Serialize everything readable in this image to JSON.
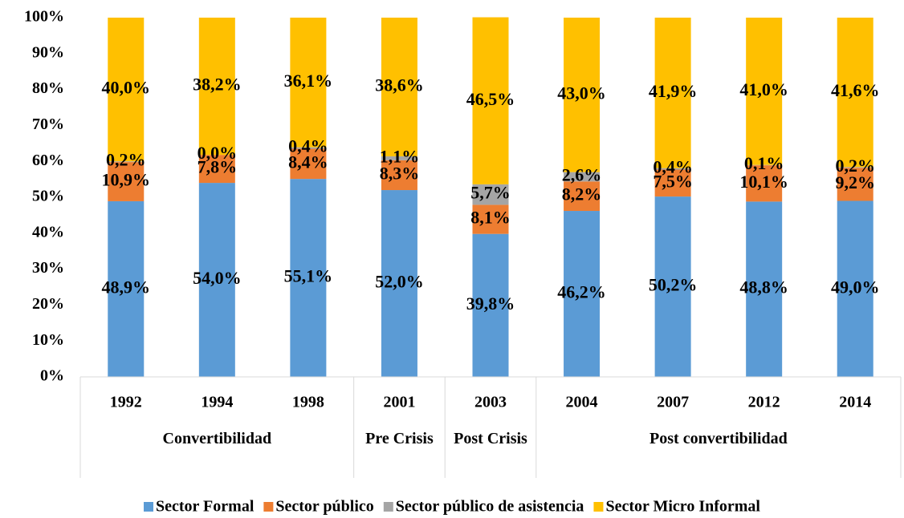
{
  "chart_data": {
    "type": "stacked_bar_100",
    "categories": [
      "1992",
      "1994",
      "1998",
      "2001",
      "2003",
      "2004",
      "2007",
      "2012",
      "2014"
    ],
    "category_groups": [
      "Convertibilidad",
      "Convertibilidad",
      "Convertibilidad",
      "Pre Crisis",
      "Post Crisis",
      "Post convertibilidad",
      "Post convertibilidad",
      "Post convertibilidad",
      "Post convertibilidad"
    ],
    "series": [
      {
        "name": "Sector Formal",
        "color": "#5b9bd5",
        "values": [
          48.9,
          54.0,
          55.1,
          52.0,
          39.8,
          46.2,
          50.2,
          48.8,
          49.0
        ],
        "value_labels": [
          "48,9%",
          "54,0%",
          "55,1%",
          "52,0%",
          "39,8%",
          "46,2%",
          "50,2%",
          "48,8%",
          "49,0%"
        ]
      },
      {
        "name": "Sector público",
        "color": "#ed7d31",
        "values": [
          10.9,
          7.8,
          8.4,
          8.3,
          8.1,
          8.2,
          7.5,
          10.1,
          9.2
        ],
        "value_labels": [
          "10,9%",
          "7,8%",
          "8,4%",
          "8,3%",
          "8,1%",
          "8,2%",
          "7,5%",
          "10,1%",
          "9,2%"
        ]
      },
      {
        "name": "Sector público de asistencia",
        "color": "#a5a5a5",
        "values": [
          0.2,
          0.0,
          0.4,
          1.1,
          5.7,
          2.6,
          0.4,
          0.1,
          0.2
        ],
        "value_labels": [
          "0,2%",
          "0,0%",
          "0,4%",
          "1,1%",
          "5,7%",
          "2,6%",
          "0,4%",
          "0,1%",
          "0,2%"
        ]
      },
      {
        "name": "Sector Micro Informal",
        "color": "#ffc000",
        "values": [
          40.0,
          38.2,
          36.1,
          38.6,
          46.5,
          43.0,
          41.9,
          41.0,
          41.6
        ],
        "value_labels": [
          "40,0%",
          "38,2%",
          "36,1%",
          "38,6%",
          "46,5%",
          "43,0%",
          "41,9%",
          "41,0%",
          "41,6%"
        ]
      }
    ],
    "ylim": [
      0,
      100
    ],
    "yticks": [
      {
        "value": 0,
        "label": "0%"
      },
      {
        "value": 10,
        "label": "10%"
      },
      {
        "value": 20,
        "label": "20%"
      },
      {
        "value": 30,
        "label": "30%"
      },
      {
        "value": 40,
        "label": "40%"
      },
      {
        "value": 50,
        "label": "50%"
      },
      {
        "value": 60,
        "label": "60%"
      },
      {
        "value": 70,
        "label": "70%"
      },
      {
        "value": 80,
        "label": "80%"
      },
      {
        "value": 90,
        "label": "90%"
      },
      {
        "value": 100,
        "label": "100%"
      }
    ],
    "grid": false,
    "legend": "bottom"
  }
}
